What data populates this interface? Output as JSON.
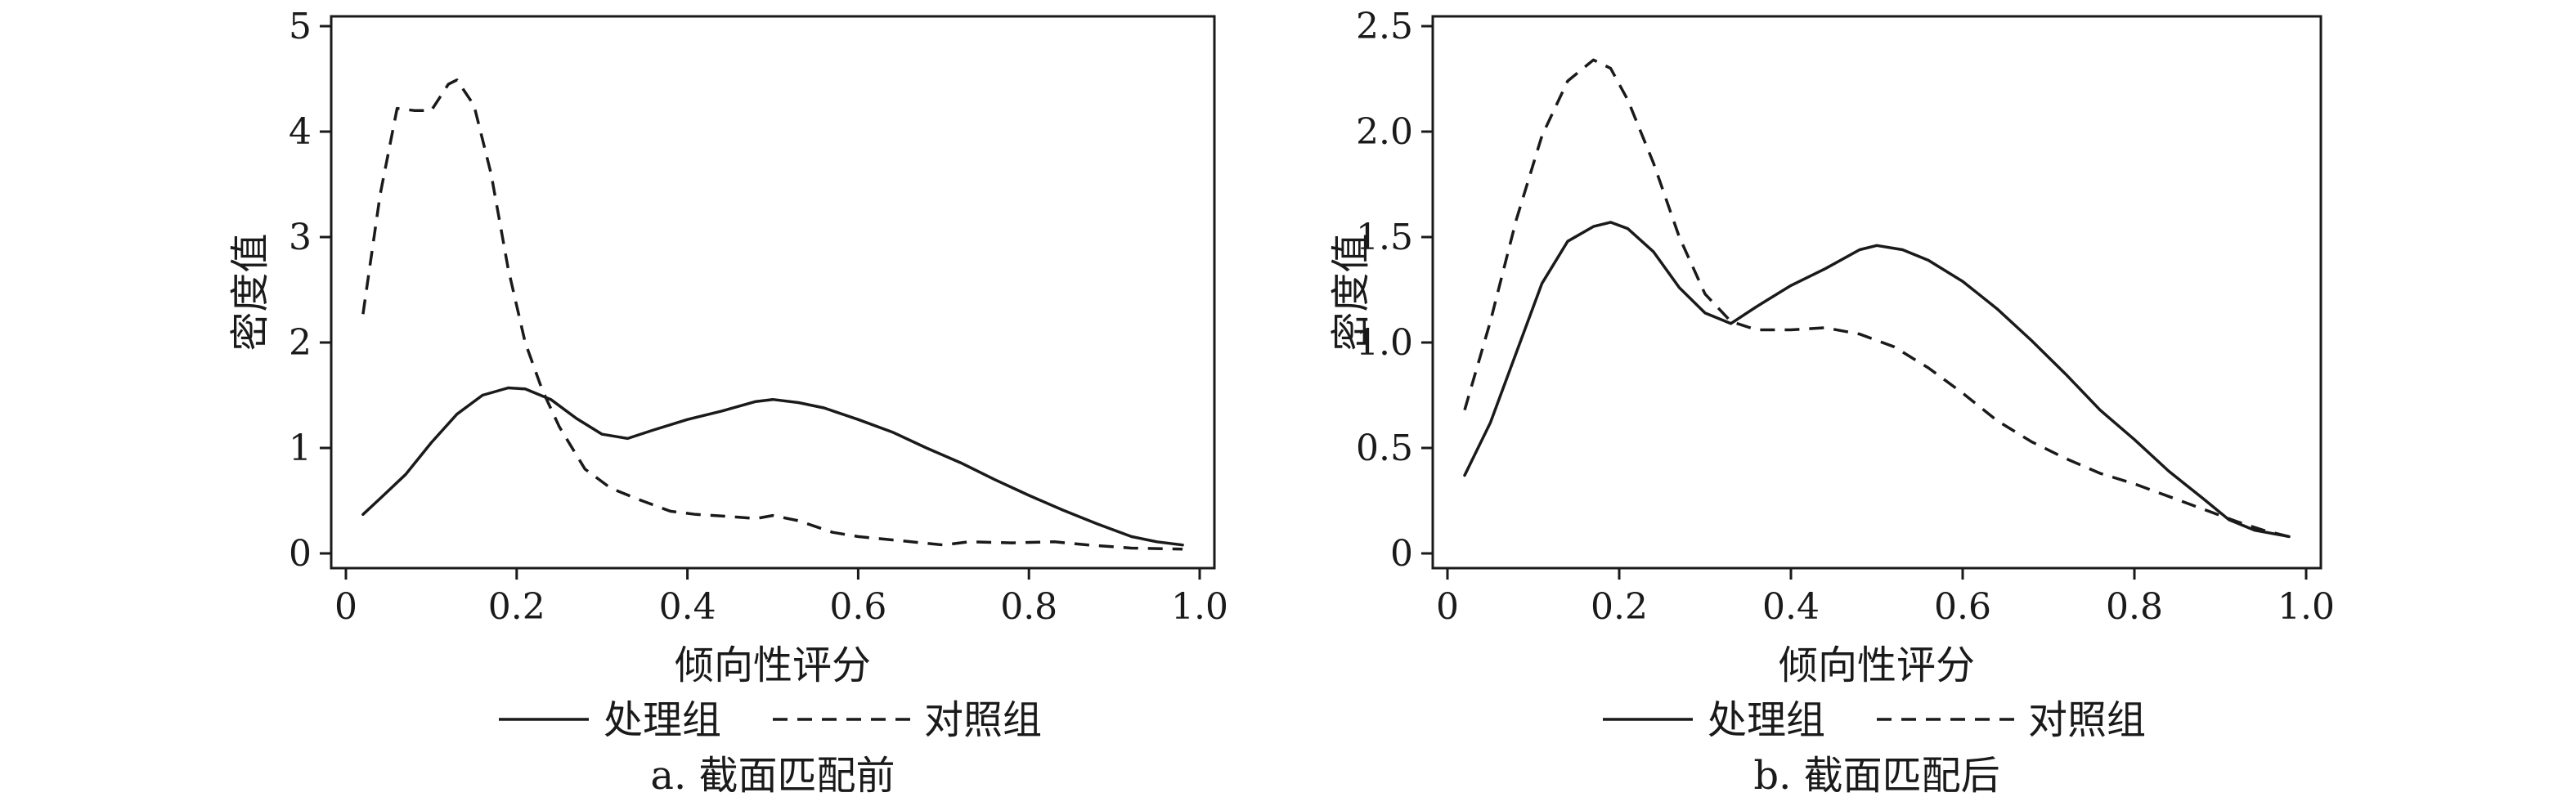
{
  "chart_data": [
    {
      "type": "line",
      "caption": "a. 截面匹配前",
      "xlabel": "倾向性评分",
      "ylabel": "密度值",
      "xlim": [
        0,
        1.0
      ],
      "ylim": [
        0,
        5
      ],
      "xticks": [
        "0",
        "0.2",
        "0.4",
        "0.6",
        "0.8",
        "1.0"
      ],
      "yticks": [
        "0",
        "1",
        "2",
        "3",
        "4",
        "5"
      ],
      "legend_position": "bottom",
      "series": [
        {
          "name": "处理组",
          "style": "solid",
          "points": [
            [
              0.02,
              0.37
            ],
            [
              0.04,
              0.52
            ],
            [
              0.07,
              0.75
            ],
            [
              0.1,
              1.05
            ],
            [
              0.13,
              1.32
            ],
            [
              0.16,
              1.5
            ],
            [
              0.19,
              1.57
            ],
            [
              0.21,
              1.56
            ],
            [
              0.24,
              1.46
            ],
            [
              0.27,
              1.28
            ],
            [
              0.3,
              1.13
            ],
            [
              0.33,
              1.09
            ],
            [
              0.36,
              1.17
            ],
            [
              0.4,
              1.27
            ],
            [
              0.44,
              1.35
            ],
            [
              0.48,
              1.44
            ],
            [
              0.5,
              1.46
            ],
            [
              0.53,
              1.43
            ],
            [
              0.56,
              1.38
            ],
            [
              0.6,
              1.27
            ],
            [
              0.64,
              1.15
            ],
            [
              0.68,
              1.0
            ],
            [
              0.72,
              0.86
            ],
            [
              0.76,
              0.7
            ],
            [
              0.8,
              0.55
            ],
            [
              0.84,
              0.41
            ],
            [
              0.88,
              0.28
            ],
            [
              0.92,
              0.16
            ],
            [
              0.95,
              0.11
            ],
            [
              0.98,
              0.08
            ]
          ]
        },
        {
          "name": "对照组",
          "style": "dashed",
          "points": [
            [
              0.02,
              2.27
            ],
            [
              0.04,
              3.4
            ],
            [
              0.06,
              4.22
            ],
            [
              0.08,
              4.2
            ],
            [
              0.1,
              4.2
            ],
            [
              0.12,
              4.45
            ],
            [
              0.13,
              4.49
            ],
            [
              0.15,
              4.25
            ],
            [
              0.17,
              3.6
            ],
            [
              0.19,
              2.7
            ],
            [
              0.21,
              2.0
            ],
            [
              0.23,
              1.55
            ],
            [
              0.25,
              1.2
            ],
            [
              0.28,
              0.8
            ],
            [
              0.31,
              0.62
            ],
            [
              0.34,
              0.52
            ],
            [
              0.38,
              0.4
            ],
            [
              0.41,
              0.37
            ],
            [
              0.45,
              0.35
            ],
            [
              0.48,
              0.33
            ],
            [
              0.5,
              0.36
            ],
            [
              0.53,
              0.31
            ],
            [
              0.57,
              0.2
            ],
            [
              0.6,
              0.16
            ],
            [
              0.65,
              0.12
            ],
            [
              0.7,
              0.08
            ],
            [
              0.73,
              0.11
            ],
            [
              0.78,
              0.1
            ],
            [
              0.83,
              0.11
            ],
            [
              0.87,
              0.08
            ],
            [
              0.92,
              0.05
            ],
            [
              0.98,
              0.04
            ]
          ]
        }
      ]
    },
    {
      "type": "line",
      "caption": "b. 截面匹配后",
      "xlabel": "倾向性评分",
      "ylabel": "密度值",
      "xlim": [
        0,
        1.0
      ],
      "ylim": [
        0,
        2.5
      ],
      "xticks": [
        "0",
        "0.2",
        "0.4",
        "0.6",
        "0.8",
        "1.0"
      ],
      "yticks": [
        "0",
        "0.5",
        "1.0",
        "1.5",
        "2.0",
        "2.5"
      ],
      "legend_position": "bottom",
      "series": [
        {
          "name": "处理组",
          "style": "solid",
          "points": [
            [
              0.02,
              0.37
            ],
            [
              0.05,
              0.62
            ],
            [
              0.08,
              0.95
            ],
            [
              0.11,
              1.28
            ],
            [
              0.14,
              1.48
            ],
            [
              0.17,
              1.55
            ],
            [
              0.19,
              1.57
            ],
            [
              0.21,
              1.54
            ],
            [
              0.24,
              1.43
            ],
            [
              0.27,
              1.26
            ],
            [
              0.3,
              1.14
            ],
            [
              0.33,
              1.09
            ],
            [
              0.36,
              1.17
            ],
            [
              0.4,
              1.27
            ],
            [
              0.44,
              1.35
            ],
            [
              0.48,
              1.44
            ],
            [
              0.5,
              1.46
            ],
            [
              0.53,
              1.44
            ],
            [
              0.56,
              1.39
            ],
            [
              0.6,
              1.29
            ],
            [
              0.64,
              1.16
            ],
            [
              0.68,
              1.01
            ],
            [
              0.72,
              0.85
            ],
            [
              0.76,
              0.68
            ],
            [
              0.8,
              0.54
            ],
            [
              0.84,
              0.39
            ],
            [
              0.88,
              0.26
            ],
            [
              0.91,
              0.16
            ],
            [
              0.94,
              0.11
            ],
            [
              0.98,
              0.08
            ]
          ]
        },
        {
          "name": "对照组",
          "style": "dashed",
          "points": [
            [
              0.02,
              0.68
            ],
            [
              0.05,
              1.1
            ],
            [
              0.08,
              1.58
            ],
            [
              0.11,
              1.98
            ],
            [
              0.14,
              2.24
            ],
            [
              0.17,
              2.34
            ],
            [
              0.19,
              2.3
            ],
            [
              0.21,
              2.15
            ],
            [
              0.24,
              1.85
            ],
            [
              0.27,
              1.5
            ],
            [
              0.3,
              1.23
            ],
            [
              0.33,
              1.1
            ],
            [
              0.36,
              1.06
            ],
            [
              0.4,
              1.06
            ],
            [
              0.44,
              1.07
            ],
            [
              0.48,
              1.04
            ],
            [
              0.52,
              0.98
            ],
            [
              0.56,
              0.88
            ],
            [
              0.6,
              0.76
            ],
            [
              0.64,
              0.63
            ],
            [
              0.68,
              0.53
            ],
            [
              0.72,
              0.45
            ],
            [
              0.76,
              0.38
            ],
            [
              0.8,
              0.33
            ],
            [
              0.84,
              0.27
            ],
            [
              0.88,
              0.21
            ],
            [
              0.92,
              0.15
            ],
            [
              0.95,
              0.11
            ],
            [
              0.98,
              0.08
            ]
          ]
        }
      ]
    }
  ]
}
